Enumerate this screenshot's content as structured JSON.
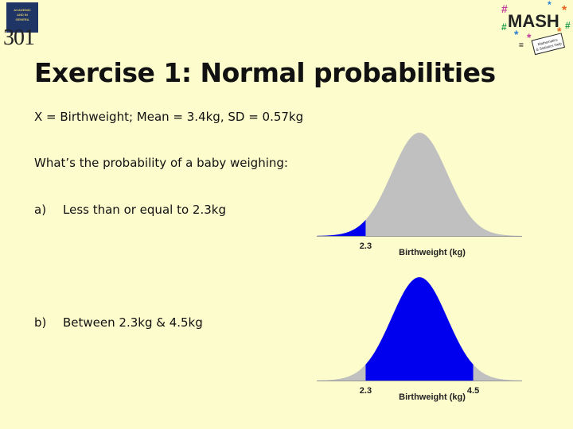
{
  "logo": {
    "lines": [
      "ACADEMIC",
      "AND IN",
      "GENERA"
    ],
    "number": "301"
  },
  "mash_logo": {
    "word": "MASH",
    "tagline_line1": "Mathematics",
    "tagline_line2": "& Statistics Help"
  },
  "slide": {
    "title": "Exercise 1: Normal probabilities",
    "line1": "X = Birthweight; Mean = 3.4kg, SD = 0.57kg",
    "line2": "What’s the probability of a baby weighing:",
    "option_a": {
      "label": "a)",
      "text": "Less than or equal to 2.3kg"
    },
    "option_b": {
      "label": "b)",
      "text": "Between 2.3kg & 4.5kg"
    }
  },
  "chart_data": [
    {
      "type": "area",
      "distribution": "normal",
      "mean": 3.4,
      "sd": 0.57,
      "shaded_region": {
        "from": null,
        "to": 2.3
      },
      "tick_labels": [
        "2.3"
      ],
      "xlabel": "Birthweight (kg)",
      "colors": {
        "shaded": "#0000ee",
        "unshaded": "#c0c0c0"
      }
    },
    {
      "type": "area",
      "distribution": "normal",
      "mean": 3.4,
      "sd": 0.57,
      "shaded_region": {
        "from": 2.3,
        "to": 4.5
      },
      "tick_labels": [
        "2.3",
        "4.5"
      ],
      "xlabel": "Birthweight (kg)",
      "colors": {
        "shaded": "#0000ee",
        "unshaded": "#c0c0c0"
      }
    }
  ]
}
